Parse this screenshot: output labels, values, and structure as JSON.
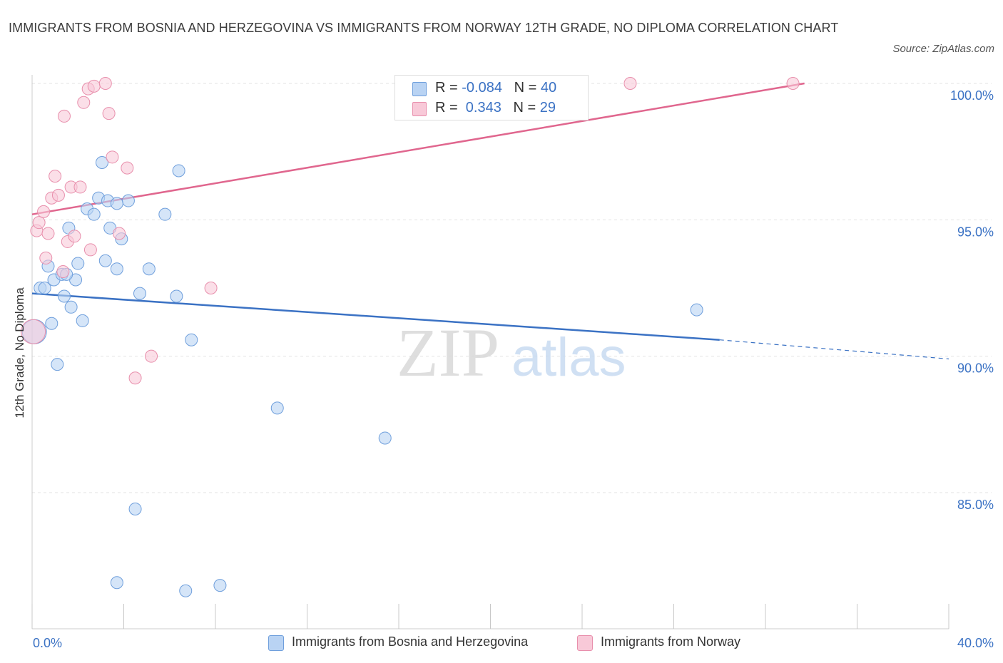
{
  "title": "IMMIGRANTS FROM BOSNIA AND HERZEGOVINA VS IMMIGRANTS FROM NORWAY 12TH GRADE, NO DIPLOMA CORRELATION CHART",
  "source": "Source: ZipAtlas.com",
  "watermark": {
    "zip": "ZIP",
    "atlas": "atlas"
  },
  "colors": {
    "blue_fill": "#b9d3f3",
    "blue_stroke": "#6f9fdc",
    "blue_line": "#3b72c4",
    "pink_fill": "#f8c9d8",
    "pink_stroke": "#e88fac",
    "pink_line": "#e0668e",
    "tick_label": "#3b72c4"
  },
  "legend_top": [
    {
      "r_label": "R = ",
      "r_value": "-0.084",
      "n_label": "N = ",
      "n_value": "40"
    },
    {
      "r_label": "R = ",
      "r_value": " 0.343",
      "n_label": "N = ",
      "n_value": "29"
    }
  ],
  "chart_data": {
    "type": "scatter",
    "ylabel": "12th Grade, No Diploma",
    "xlim": [
      0,
      40
    ],
    "ylim": [
      80,
      100.5
    ],
    "x_tick_labels": [
      "0.0%",
      "40.0%"
    ],
    "y_ticks": [
      85,
      90,
      95,
      100
    ],
    "y_tick_labels": [
      "85.0%",
      "90.0%",
      "95.0%",
      "100.0%"
    ],
    "grid": true,
    "legend_placement": "bottom-center",
    "series": [
      {
        "name": "Immigrants from Bosnia and Herzegovina",
        "color": "#b9d3f3",
        "trend": {
          "x": [
            0,
            30
          ],
          "y": [
            92.3,
            90.6
          ],
          "dashed_to": [
            40,
            89.9
          ]
        },
        "points": [
          {
            "x": 0.1,
            "y": 90.9,
            "big": true
          },
          {
            "x": 0.35,
            "y": 92.5
          },
          {
            "x": 0.55,
            "y": 92.5
          },
          {
            "x": 0.7,
            "y": 93.3
          },
          {
            "x": 0.85,
            "y": 91.2
          },
          {
            "x": 0.95,
            "y": 92.8
          },
          {
            "x": 1.1,
            "y": 89.7
          },
          {
            "x": 1.3,
            "y": 93.0
          },
          {
            "x": 1.4,
            "y": 92.2
          },
          {
            "x": 1.6,
            "y": 94.7
          },
          {
            "x": 1.7,
            "y": 91.8
          },
          {
            "x": 1.9,
            "y": 92.8
          },
          {
            "x": 2.0,
            "y": 93.4
          },
          {
            "x": 2.2,
            "y": 91.3
          },
          {
            "x": 2.4,
            "y": 95.4
          },
          {
            "x": 2.7,
            "y": 95.2
          },
          {
            "x": 2.9,
            "y": 95.8
          },
          {
            "x": 3.05,
            "y": 97.1
          },
          {
            "x": 3.2,
            "y": 93.5
          },
          {
            "x": 3.3,
            "y": 95.7
          },
          {
            "x": 3.4,
            "y": 94.7
          },
          {
            "x": 3.7,
            "y": 93.2
          },
          {
            "x": 3.9,
            "y": 94.3
          },
          {
            "x": 4.2,
            "y": 95.7
          },
          {
            "x": 4.7,
            "y": 92.3
          },
          {
            "x": 5.1,
            "y": 93.2
          },
          {
            "x": 5.8,
            "y": 95.2
          },
          {
            "x": 6.3,
            "y": 92.2
          },
          {
            "x": 6.4,
            "y": 96.8
          },
          {
            "x": 6.95,
            "y": 90.6
          },
          {
            "x": 10.7,
            "y": 88.1
          },
          {
            "x": 15.4,
            "y": 87.0
          },
          {
            "x": 4.5,
            "y": 84.4
          },
          {
            "x": 3.7,
            "y": 81.7
          },
          {
            "x": 6.7,
            "y": 81.4
          },
          {
            "x": 8.2,
            "y": 81.6
          },
          {
            "x": 29.0,
            "y": 91.7
          },
          {
            "x": 20.7,
            "y": 98.9
          },
          {
            "x": 3.7,
            "y": 95.6
          },
          {
            "x": 1.5,
            "y": 93.0
          }
        ]
      },
      {
        "name": "Immigrants from Norway",
        "color": "#f8c9d8",
        "trend": {
          "x": [
            0,
            33.7
          ],
          "y": [
            95.2,
            100.0
          ]
        },
        "points": [
          {
            "x": 0.05,
            "y": 90.9,
            "big": true
          },
          {
            "x": 0.2,
            "y": 94.6
          },
          {
            "x": 0.3,
            "y": 94.9
          },
          {
            "x": 0.5,
            "y": 95.3
          },
          {
            "x": 0.6,
            "y": 93.6
          },
          {
            "x": 0.7,
            "y": 94.5
          },
          {
            "x": 0.85,
            "y": 95.8
          },
          {
            "x": 1.0,
            "y": 96.6
          },
          {
            "x": 1.15,
            "y": 95.9
          },
          {
            "x": 1.35,
            "y": 93.1
          },
          {
            "x": 1.4,
            "y": 98.8
          },
          {
            "x": 1.55,
            "y": 94.2
          },
          {
            "x": 1.7,
            "y": 96.2
          },
          {
            "x": 1.85,
            "y": 94.4
          },
          {
            "x": 2.1,
            "y": 96.2
          },
          {
            "x": 2.25,
            "y": 99.3
          },
          {
            "x": 2.45,
            "y": 99.8
          },
          {
            "x": 2.55,
            "y": 93.9
          },
          {
            "x": 2.7,
            "y": 99.9
          },
          {
            "x": 3.2,
            "y": 100.0
          },
          {
            "x": 3.35,
            "y": 98.9
          },
          {
            "x": 3.5,
            "y": 97.3
          },
          {
            "x": 3.8,
            "y": 94.5
          },
          {
            "x": 4.15,
            "y": 96.9
          },
          {
            "x": 4.5,
            "y": 89.2
          },
          {
            "x": 5.2,
            "y": 90.0
          },
          {
            "x": 7.8,
            "y": 92.5
          },
          {
            "x": 26.1,
            "y": 100.0
          },
          {
            "x": 33.2,
            "y": 100.0
          }
        ]
      }
    ]
  }
}
